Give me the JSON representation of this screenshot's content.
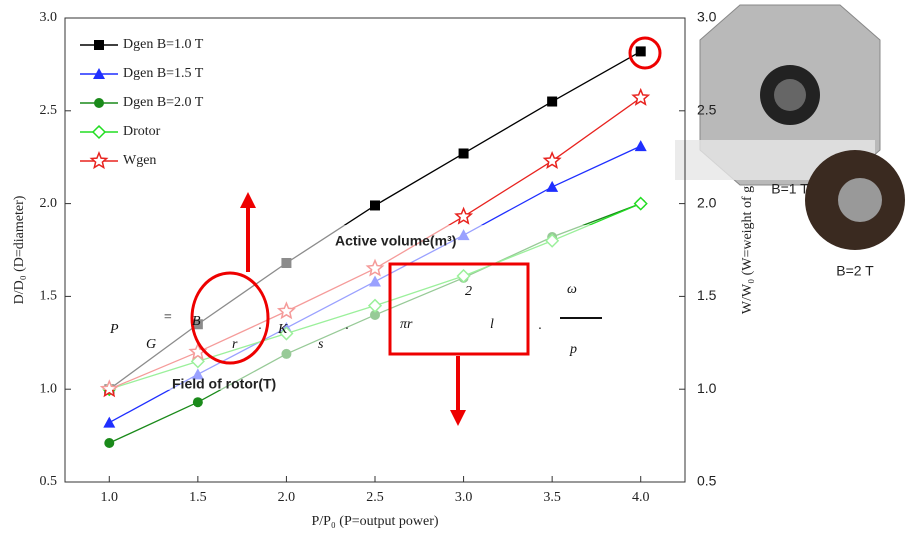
{
  "chart_data": {
    "type": "line",
    "x_label": "P/P₀ (P=output power)",
    "y_label": "D/D₀ (D=diameter)",
    "y2_label": "W/W₀ (W=weight of g",
    "x": [
      1.0,
      1.5,
      2.0,
      2.5,
      3.0,
      3.5,
      4.0
    ],
    "xlim": [
      0.75,
      4.25
    ],
    "xticks": [
      {
        "value": 1,
        "label": "1.0"
      },
      1.5,
      {
        "value": 2,
        "label": "2.0"
      },
      2.5,
      {
        "value": 3,
        "label": "3.0"
      },
      3.5,
      {
        "value": 4,
        "label": "4.0"
      }
    ],
    "ylim": [
      0.5,
      3.0
    ],
    "yticks": [
      0.5,
      {
        "value": 1,
        "label": "1.0"
      },
      1.5,
      {
        "value": 2,
        "label": "2.0"
      },
      2.5,
      {
        "value": 3,
        "label": "3.0"
      }
    ],
    "y2lim": [
      0.5,
      3.0
    ],
    "y2ticks": [
      0.5,
      {
        "value": 1,
        "label": "1.0"
      },
      1.5,
      {
        "value": 2,
        "label": "2.0"
      },
      2.5,
      {
        "value": 3,
        "label": "3.0"
      }
    ],
    "legend": "upper left",
    "series": [
      {
        "name": "Dgen B=1.0 T",
        "color": "#000000",
        "marker": "square",
        "values": [
          1.0,
          1.35,
          1.68,
          1.99,
          2.27,
          2.55,
          2.82
        ]
      },
      {
        "name": "Dgen B=1.5 T",
        "color": "#1f2fff",
        "marker": "triangle",
        "values": [
          0.82,
          1.08,
          1.33,
          1.58,
          1.83,
          2.09,
          2.31
        ]
      },
      {
        "name": "Dgen B=2.0 T",
        "color": "#1a8a1a",
        "marker": "circle",
        "values": [
          0.71,
          0.93,
          1.19,
          1.4,
          1.6,
          1.82,
          2.0
        ]
      },
      {
        "name": "Drotor",
        "color": "#22dd22",
        "marker": "diamond",
        "values": [
          1.0,
          1.15,
          1.3,
          1.45,
          1.61,
          1.8,
          2.0
        ]
      },
      {
        "name": "Wgen",
        "color": "#e8231f",
        "marker": "star",
        "axis": "y2",
        "values": [
          1.0,
          1.2,
          1.42,
          1.65,
          1.93,
          2.23,
          2.57
        ]
      }
    ],
    "annotations": {
      "active_volume": "Active volume(m³)",
      "field_of_rotor": "Field of rotor(T)",
      "formula": [
        "P",
        "G",
        "=",
        "B",
        "r",
        "·",
        "K",
        "s",
        "·",
        "πr",
        "2",
        "l",
        "·",
        "ω",
        "p"
      ],
      "photo_labels": [
        "B=1 T",
        "B=2 T"
      ]
    }
  }
}
